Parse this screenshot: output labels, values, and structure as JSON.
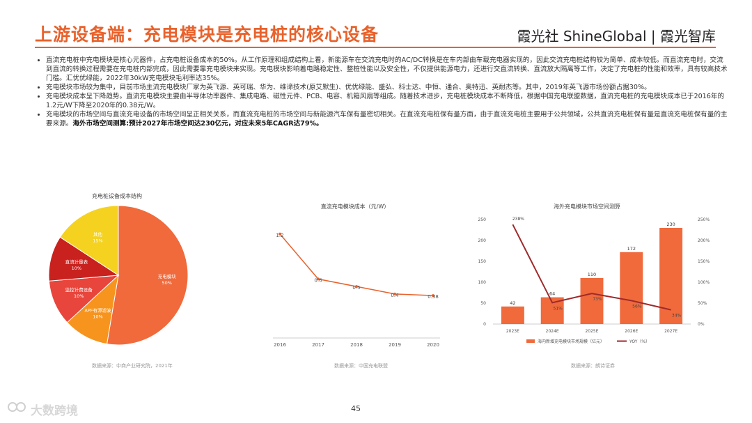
{
  "header": {
    "title": "上游设备端：充电模块是充电桩的核心设备",
    "brand": "霞光社 ShineGlobal | 霞光智库"
  },
  "bullets": [
    {
      "text": "直流充电桩中充电模块是核心元器件，占充电桩设备成本的50%。从工作原理和组成结构上看，新能源车在交流充电时的AC/DC转换是在车内部由车载充电器实现的，因此交流充电桩结构较为简单、成本较低。而直流充电时，交流到直流的转换过程需要在充电桩内部完成，因此需要靠充电模块来实现。充电模块影响着电路稳定性、整桩性能以及安全性，不仅提供能源电力，还进行交直流转换、直流放大隔离等工作，决定了充电桩的性能和效率，具有较高技术门槛。汇优优绿能，2022年30kW充电模块毛利率达35%。",
      "highlight": ""
    },
    {
      "text": "充电模块市场较为集中，目前市场主流充电模块厂家为英飞源、英可瑞、华为、维谛技术(原艾默生)、优优绿能、盛弘、科士达、中恒、通合、奥特迅、英耐杰等。其中，2019年英飞源市场份额占据30%。",
      "highlight": ""
    },
    {
      "text": "充电模块成本呈下降趋势。直流充电模块主要由半导体功率器件、集成电路、磁性元件、PCB、电容、机箱风扇等组成。随着技术进步，充电桩模块成本不断降低，根据中国充电联盟数据，直流充电桩的充电模块成本已于2016年的1.2元/W下降至2020年的0.38元/W。",
      "highlight": ""
    },
    {
      "text": "充电模块的市场空间与直流充电设备的市场空间呈正相关关系，而直流充电桩的市场空间与新能源汽车保有量密切相关。在直流充电桩保有量方面，由于直流充电桩主要用于公共领域，公共直流充电桩保有量是直流充电桩保有量的主要来源。",
      "highlight": "海外市场空间测算:预计2027年市场空间达230亿元，对应未来5年CAGR达79%。"
    }
  ],
  "pie": {
    "title": "充电桩设备成本结构",
    "source": "数据来源：中商产业研究院，2021年",
    "colors": {
      "charging": "#f06a3c",
      "apf": "#f7941d",
      "monitor": "#e8453c",
      "meter": "#c9211e",
      "other": "#f4d21f"
    }
  },
  "line": {
    "title": "直流充电模块成本（元/W）",
    "source": "数据来源：中国充电联盟",
    "color": "#e8622c"
  },
  "combo": {
    "title": "海外充电模块市场空间测算",
    "legend_bar": "海内新增充电模块市场规模（亿元）",
    "legend_line": "YOY（%）",
    "source": "数据来源：朗诗证券",
    "bar_color": "#f06a3c",
    "line_color": "#9e2a2b"
  },
  "chart_data": [
    {
      "type": "pie",
      "title": "充电桩设备成本结构",
      "slices": [
        {
          "label": "充电模块",
          "pct": "50%",
          "value": 50
        },
        {
          "label": "APF有源滤波",
          "pct": "10%",
          "value": 10
        },
        {
          "label": "监控计费设备",
          "pct": "10%",
          "value": 10
        },
        {
          "label": "直流计量表",
          "pct": "10%",
          "value": 10
        },
        {
          "label": "其他",
          "pct": "15%",
          "value": 15
        }
      ]
    },
    {
      "type": "line",
      "title": "直流充电模块成本（元/W）",
      "categories": [
        "2016",
        "2017",
        "2018",
        "2019",
        "2020"
      ],
      "values": [
        1.2,
        0.6,
        0.5,
        0.4,
        0.38
      ],
      "value_labels": [
        "1.2",
        "0.6",
        "0.5",
        "0.4",
        "0.38"
      ],
      "ylim": [
        0,
        1.3
      ]
    },
    {
      "type": "bar",
      "title": "海外充电模块市场空间测算",
      "categories": [
        "2023E",
        "2024E",
        "2025E",
        "2026E",
        "2027E"
      ],
      "series": [
        {
          "name": "海内新增充电模块市场规模（亿元）",
          "values": [
            42,
            64,
            110,
            172,
            230
          ],
          "labels": [
            "42",
            "64",
            "110",
            "172",
            "230"
          ]
        },
        {
          "name": "YOY（%）",
          "values": [
            238,
            51,
            73,
            56,
            34
          ],
          "labels": [
            "238%",
            "51%",
            "73%",
            "56%",
            "34%"
          ]
        }
      ],
      "y_left_ticks": [
        "0",
        "50",
        "100",
        "150",
        "200",
        "250"
      ],
      "y_right_ticks": [
        "0%",
        "50%",
        "100%",
        "150%",
        "200%",
        "250%"
      ],
      "ylim_left": [
        0,
        250
      ],
      "ylim_right": [
        0,
        250
      ]
    }
  ],
  "footer": {
    "page_number": "45",
    "watermark": "大数跨境"
  }
}
